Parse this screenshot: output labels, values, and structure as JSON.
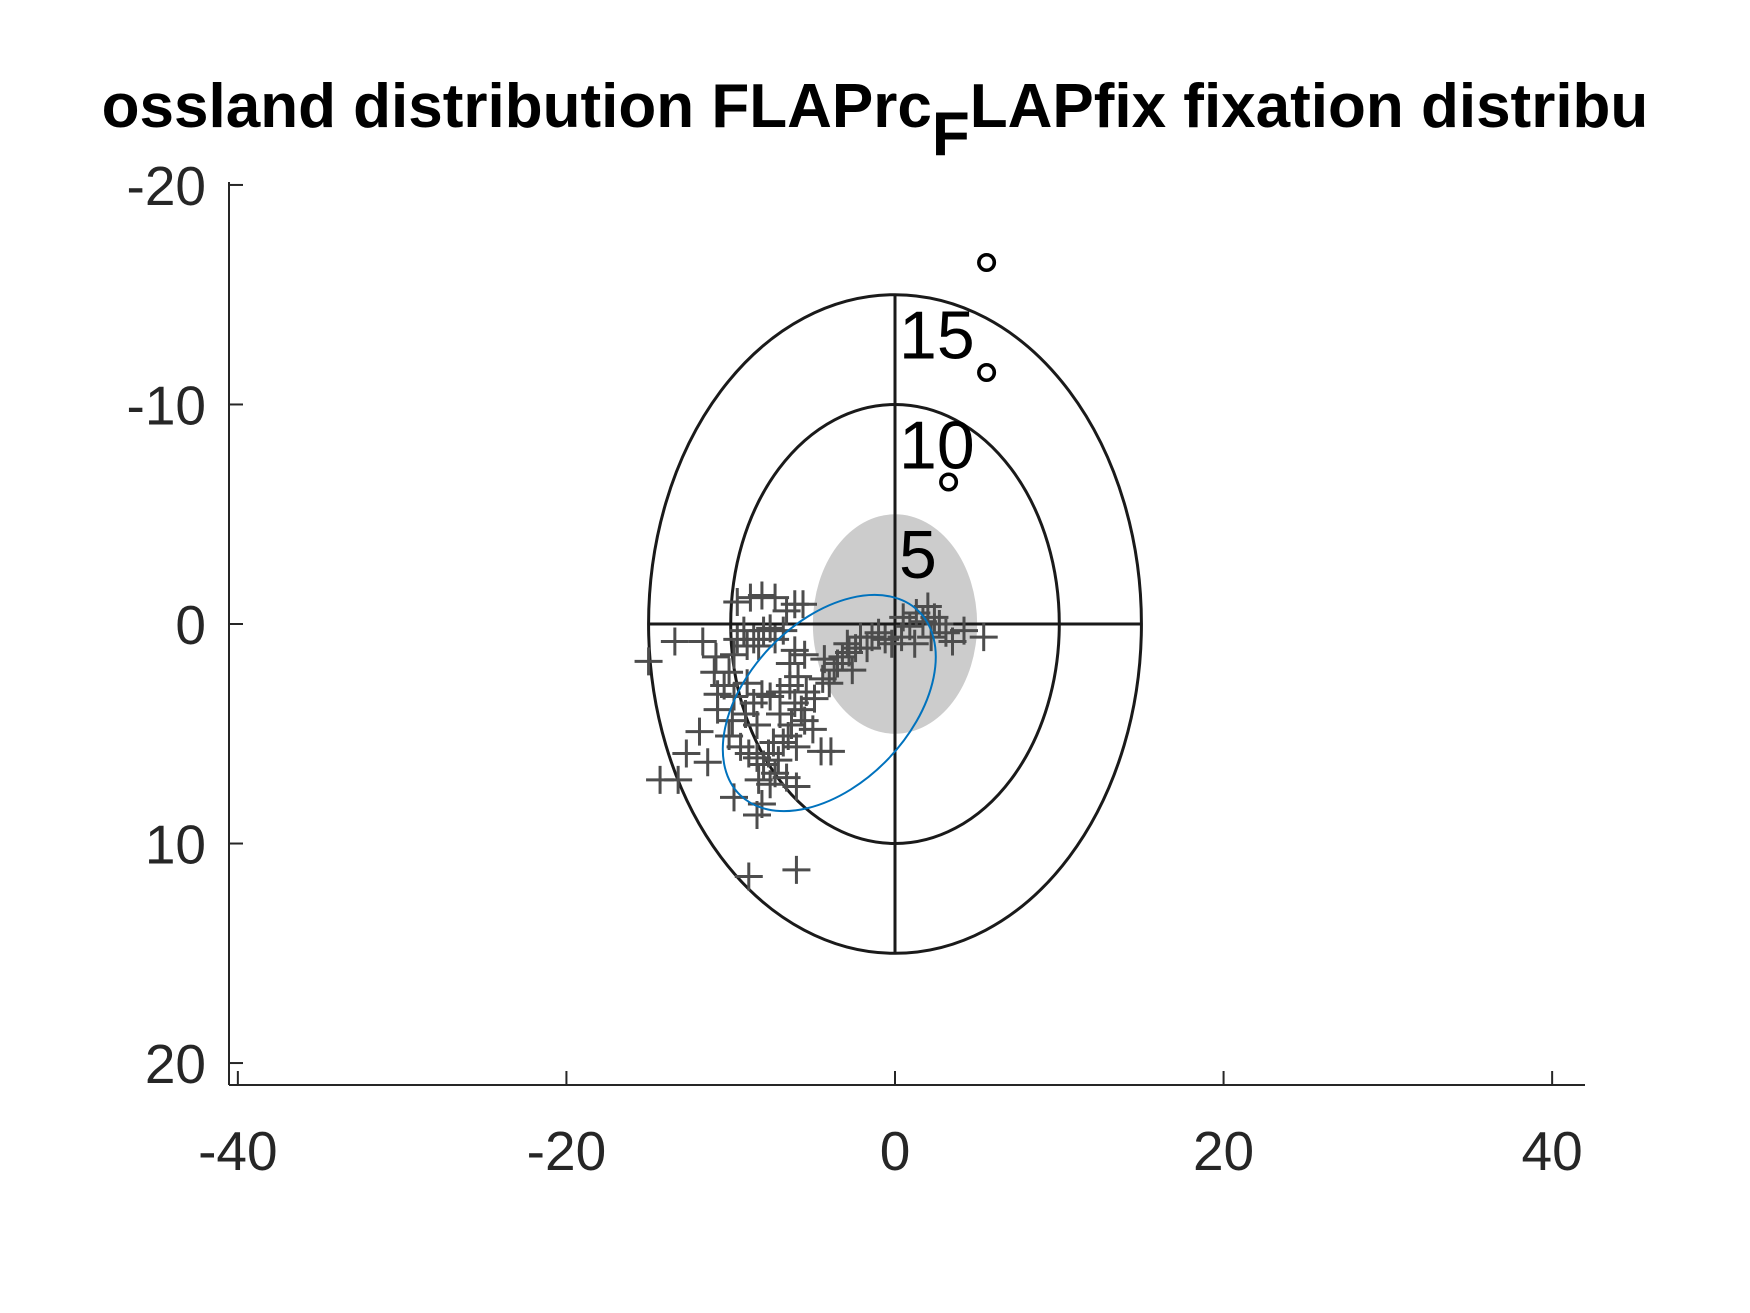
{
  "chart_data": {
    "type": "scatter",
    "title": {
      "part1": "ossland distribution FLAPrc",
      "subscript": "F",
      "part2": "LAPfix fixation distribu"
    },
    "xlabel": "",
    "ylabel": "",
    "xlim": [
      -42,
      42
    ],
    "ylim": [
      -21,
      21
    ],
    "y_reversed": true,
    "x_ticks": [
      -40,
      -20,
      0,
      20,
      40
    ],
    "y_ticks": [
      -20,
      -10,
      0,
      10,
      20
    ],
    "x_tick_labels": [
      "-40",
      "-20",
      "0",
      "20",
      "40"
    ],
    "y_tick_labels": [
      "-20",
      "-10",
      "0",
      "10",
      "20"
    ],
    "rings": [
      5,
      10,
      15
    ],
    "ring_labels": [
      {
        "value": 5,
        "label": "5",
        "degree_mark": "°"
      },
      {
        "value": 10,
        "label": "10",
        "degree_mark": "°"
      },
      {
        "value": 15,
        "label": "15",
        "degree_mark": "°"
      }
    ],
    "central_disc_radius": 5,
    "ellipse": {
      "cx": -4.0,
      "cy": 3.6,
      "rx": 7.8,
      "ry": 3.7,
      "angle_deg": -46
    },
    "points": [
      [
        -13.4,
        0.8
      ],
      [
        -11.7,
        0.8
      ],
      [
        -11.0,
        2.2
      ],
      [
        -10.9,
        1.5
      ],
      [
        -10.8,
        3.2
      ],
      [
        -10.1,
        2.2
      ],
      [
        -9.8,
        1.4
      ],
      [
        -9.6,
        0.7
      ],
      [
        -9.2,
        0.3
      ],
      [
        -9.0,
        1.0
      ],
      [
        -8.6,
        0.7
      ],
      [
        -8.3,
        1.0
      ],
      [
        -8.0,
        0.3
      ],
      [
        -7.6,
        0.2
      ],
      [
        -7.3,
        0.7
      ],
      [
        -6.8,
        0.3
      ],
      [
        -6.4,
        1.8
      ],
      [
        -6.1,
        1.2
      ],
      [
        -5.9,
        2.4
      ],
      [
        -5.5,
        1.4
      ],
      [
        -9.6,
        -1.0
      ],
      [
        -8.8,
        -1.2
      ],
      [
        -8.1,
        -1.3
      ],
      [
        -7.3,
        -1.2
      ],
      [
        -6.6,
        -0.6
      ],
      [
        -6.1,
        -0.9
      ],
      [
        -5.6,
        -0.9
      ],
      [
        -10.8,
        3.9
      ],
      [
        -9.9,
        4.4
      ],
      [
        -9.1,
        4.1
      ],
      [
        -8.6,
        3.6
      ],
      [
        -8.1,
        3.2
      ],
      [
        -7.6,
        3.3
      ],
      [
        -7.0,
        3.1
      ],
      [
        -6.4,
        2.8
      ],
      [
        -6.1,
        3.6
      ],
      [
        -5.4,
        3.1
      ],
      [
        -4.9,
        3.4
      ],
      [
        -4.4,
        2.5
      ],
      [
        -4.0,
        2.7
      ],
      [
        -3.7,
        2.1
      ],
      [
        -3.2,
        1.5
      ],
      [
        -2.9,
        0.9
      ],
      [
        -2.4,
        1.1
      ],
      [
        -2.1,
        0.6
      ],
      [
        -1.7,
        1.1
      ],
      [
        -1.4,
        0.6
      ],
      [
        -1.0,
        0.4
      ],
      [
        -0.6,
        0.7
      ],
      [
        -0.2,
        0.9
      ],
      [
        0.4,
        0.6
      ],
      [
        0.9,
        0.1
      ],
      [
        1.3,
        -0.5
      ],
      [
        1.7,
        -0.1
      ],
      [
        2.0,
        -0.8
      ],
      [
        2.4,
        -0.3
      ],
      [
        2.7,
        0.0
      ],
      [
        3.1,
        0.4
      ],
      [
        3.5,
        0.8
      ],
      [
        2.2,
        0.6
      ],
      [
        1.2,
        0.9
      ],
      [
        0.5,
        -0.3
      ],
      [
        5.4,
        0.6
      ],
      [
        4.2,
        0.3
      ],
      [
        -11.4,
        6.3
      ],
      [
        -12.7,
        5.9
      ],
      [
        -11.9,
        4.9
      ],
      [
        -10.1,
        5.1
      ],
      [
        -9.4,
        5.6
      ],
      [
        -8.9,
        5.9
      ],
      [
        -8.4,
        6.1
      ],
      [
        -8.0,
        6.4
      ],
      [
        -7.7,
        5.9
      ],
      [
        -7.4,
        5.4
      ],
      [
        -7.1,
        6.2
      ],
      [
        -6.8,
        5.4
      ],
      [
        -6.5,
        5.1
      ],
      [
        -6.3,
        4.6
      ],
      [
        -6.0,
        5.6
      ],
      [
        -5.5,
        4.4
      ],
      [
        -5.0,
        4.8
      ],
      [
        -4.5,
        5.8
      ],
      [
        -3.9,
        5.8
      ],
      [
        -7.3,
        6.8
      ],
      [
        -8.3,
        7.1
      ],
      [
        -7.6,
        7.3
      ],
      [
        -6.6,
        7.0
      ],
      [
        -6.0,
        7.4
      ],
      [
        -8.1,
        8.2
      ],
      [
        -8.4,
        8.7
      ],
      [
        -9.8,
        7.9
      ],
      [
        -8.4,
        4.6
      ],
      [
        -7.0,
        4.1
      ],
      [
        -5.7,
        3.9
      ],
      [
        -13.2,
        7.1
      ],
      [
        -14.3,
        7.1
      ],
      [
        -15.0,
        1.7
      ],
      [
        -8.9,
        11.5
      ],
      [
        -6.0,
        11.2
      ],
      [
        -4.3,
        1.6
      ],
      [
        -3.5,
        1.8
      ],
      [
        -2.8,
        1.3
      ],
      [
        -2.6,
        2.1
      ],
      [
        -10.4,
        2.8
      ],
      [
        -9.0,
        2.7
      ],
      [
        -9.8,
        3.3
      ]
    ]
  }
}
